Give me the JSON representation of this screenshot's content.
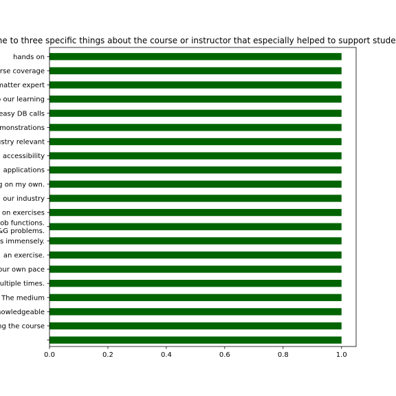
{
  "chart_data": {
    "type": "bar",
    "orientation": "horizontal",
    "title": "Name one to three specific things about the course or instructor that especially helped to support student learning",
    "xlabel": "",
    "ylabel": "",
    "xlim": [
      0,
      1.05
    ],
    "xticks": [
      "0.0",
      "0.2",
      "0.4",
      "0.6",
      "0.8",
      "1.0"
    ],
    "grid": false,
    "bar_color": "#006400",
    "categories": [
      "hands on",
      "course coverage",
      "subject matter expert",
      "to our learning",
      "easy DB calls",
      "demonstrations",
      "industry relevant",
      "accessibility",
      "applications",
      "learning on my own.",
      "our industry",
      "hands on exercises",
      "job functions.\nP&G problems.",
      "helps immensely.",
      "an exercise.",
      "at your own pace",
      "multiple times.",
      "The medium",
      "knowledgeable",
      "taking the course",
      ""
    ],
    "values": [
      1,
      1,
      1,
      1,
      1,
      1,
      1,
      1,
      1,
      1,
      1,
      1,
      1,
      1,
      1,
      1,
      1,
      1,
      1,
      1,
      1
    ]
  }
}
